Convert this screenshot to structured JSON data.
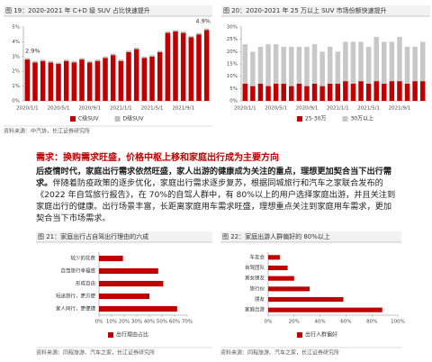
{
  "chart_data": [
    {
      "type": "bar",
      "stacked": true,
      "title": "图 19：2020-2021 年 C+D 级 SUV 占比快速提升",
      "categories": [
        "2020/1/1",
        null,
        null,
        null,
        "2020/5/1",
        null,
        null,
        null,
        "2020/9/1",
        null,
        null,
        null,
        "2021/1/1",
        null,
        null,
        null,
        "2021/5/1",
        null,
        null,
        null,
        "2021/9/1",
        null,
        null,
        null
      ],
      "series": [
        {
          "name": "C级SUV",
          "color": "#c00000",
          "values": [
            2.8,
            2.6,
            2.7,
            2.6,
            2.5,
            2.7,
            2.6,
            2.8,
            2.6,
            2.7,
            2.9,
            3.1,
            2.7,
            3.3,
            3.5,
            2.9,
            3.0,
            3.3,
            4.6,
            4.7,
            4.6,
            4.3,
            4.5,
            4.8
          ]
        },
        {
          "name": "D级SUV",
          "color": "#bfbfbf",
          "values": [
            0.1,
            0.1,
            0.1,
            0.1,
            0.1,
            0.1,
            0.1,
            0.1,
            0.1,
            0.1,
            0.1,
            0.1,
            0.1,
            0.1,
            0.1,
            0.1,
            0.1,
            0.1,
            0.1,
            0.1,
            0.1,
            0.1,
            0.1,
            0.1
          ]
        }
      ],
      "annotations": [
        "2.9%",
        "4.9%"
      ],
      "ylim": [
        0,
        5
      ],
      "yticks": [
        {
          "value": 0,
          "label": "0%"
        },
        {
          "value": 1,
          "label": "1%"
        },
        {
          "value": 2,
          "label": "2%"
        },
        {
          "value": 3,
          "label": "3%"
        },
        {
          "value": 4,
          "label": "4%"
        },
        {
          "value": 5,
          "label": "5%"
        }
      ],
      "grid": false,
      "source": "资料来源：中汽协，长江证券研究所"
    },
    {
      "type": "bar",
      "stacked": true,
      "title": "图 20：2020-2021 年 25 万以上 SUV 市场份额快速提升",
      "categories": [
        "2020/1/1",
        null,
        null,
        null,
        "2020/5/1",
        null,
        null,
        null,
        "2020/9/1",
        null,
        null,
        null,
        "2021/1/1",
        null,
        null,
        null,
        "2021/5/1",
        null,
        null,
        null,
        "2021/9/1",
        null,
        null,
        null
      ],
      "series": [
        {
          "name": "25-30万",
          "color": "#c00000",
          "values": [
            7,
            6,
            7,
            6,
            7,
            7,
            6,
            7,
            6,
            7,
            6,
            7,
            7,
            8,
            7,
            8,
            7,
            8,
            7,
            8,
            8,
            7,
            8,
            8
          ]
        },
        {
          "name": "30万以上",
          "color": "#c8c8c8",
          "values": [
            16,
            14,
            15,
            17,
            16,
            15,
            16,
            15,
            16,
            16,
            14,
            15,
            13,
            16,
            17,
            16,
            15,
            18,
            17,
            16,
            18,
            15,
            14,
            16
          ]
        }
      ],
      "ylim": [
        0,
        30
      ],
      "yticks": [
        {
          "value": 0,
          "label": "0%"
        },
        {
          "value": 5,
          "label": "5%"
        },
        {
          "value": 10,
          "label": "10%"
        },
        {
          "value": 15,
          "label": "15%"
        },
        {
          "value": 20,
          "label": "20%"
        },
        {
          "value": 25,
          "label": "25%"
        },
        {
          "value": 30,
          "label": "30%"
        }
      ],
      "grid": false
    },
    {
      "type": "barh",
      "title": "图 21：家庭出行占自驾出行理由的六成",
      "categories": [
        "较少的花费",
        "自驾旅行幸福感",
        "形成自由",
        "短途旅行，更方便",
        "家人同行，更便捷"
      ],
      "series": [
        {
          "name": "出行理由占比",
          "color": "#c00000",
          "values": [
            19,
            47,
            51,
            40,
            62
          ]
        }
      ],
      "xlim": [
        0,
        70
      ],
      "xticks": [
        {
          "value": 0,
          "label": "0%"
        },
        {
          "value": 10,
          "label": "10%"
        },
        {
          "value": 20,
          "label": "20%"
        },
        {
          "value": 30,
          "label": "30%"
        },
        {
          "value": 40,
          "label": "40%"
        },
        {
          "value": 50,
          "label": "50%"
        },
        {
          "value": 60,
          "label": "60%"
        },
        {
          "value": 70,
          "label": "70%"
        }
      ],
      "source": "资料来源：同程旅游、汽车之家，长江证券研究所"
    },
    {
      "type": "barh",
      "title": "图 22：家庭出游人群偏好的 80%以上",
      "categories": [
        "车友会",
        "自驾团队",
        "男女朋友",
        "旅行伙",
        "朋友",
        "家庭出游"
      ],
      "series": [
        {
          "name": "出行人群偏好",
          "color": "#c00000",
          "values": [
            9,
            15,
            20,
            32,
            58,
            88
          ]
        }
      ],
      "xlim": [
        0,
        100
      ],
      "xticks": [
        {
          "value": 0,
          "label": "0%"
        },
        {
          "value": 20,
          "label": "20%"
        },
        {
          "value": 40,
          "label": "40%"
        },
        {
          "value": 60,
          "label": "60%"
        },
        {
          "value": 80,
          "label": "80%"
        },
        {
          "value": 100,
          "label": "100%"
        }
      ],
      "source": "资料来源：同程旅游、汽车之家，长江证券研究所"
    }
  ],
  "heading": "需求：换购需求旺盛，价格中枢上移和家庭出行成为主要方向",
  "paragraph": {
    "bold": "后疫情时代，家庭出行需求依然旺盛，家人出游的健康成为关注的重点，理想更加契合当下出行需求。",
    "text": "伴随着防疫政策的逐步优化，家庭出行需求逐步复苏，根据同城旅行和汽车之家联合发布的《2022 年自驾旅行报告》，在 70%的自驾人群中，有 80%以上的用户选择家庭出游，并且关注到家庭出行的健康。出行场景丰富，长距离家庭用车需求旺盛，理想重点关注到家庭用车需求，更加契合当下市场需求。"
  }
}
